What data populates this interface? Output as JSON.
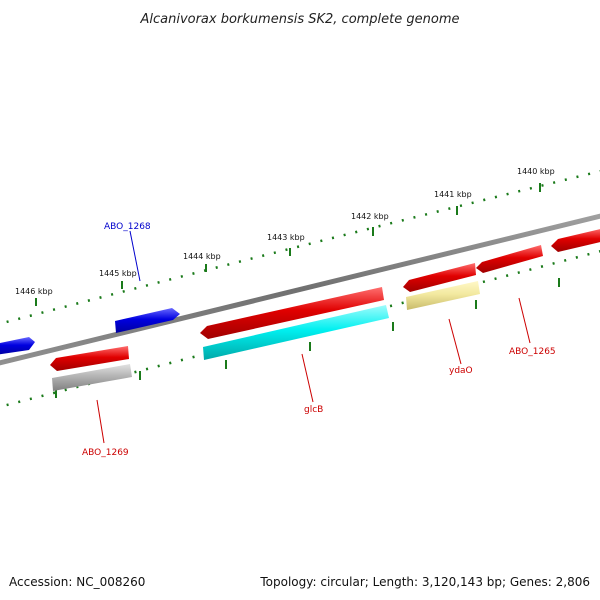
{
  "title": "Alcanivorax borkumensis SK2, complete genome",
  "footer": {
    "accession": "Accession: NC_008260",
    "topology": "Topology: circular; Length: 3,120,143 bp; Genes: 2,806"
  },
  "ruler_labels": [
    "1446 kbp",
    "1445 kbp",
    "1444 kbp",
    "1443 kbp",
    "1442 kbp",
    "1441 kbp",
    "1440 kbp"
  ],
  "gene_labels": [
    {
      "id": "ABO_1268",
      "text": "ABO_1268",
      "color": "#0000cc"
    },
    {
      "id": "ABO_1269",
      "text": "ABO_1269",
      "color": "#cc0000"
    },
    {
      "id": "glcB",
      "text": "glcB",
      "color": "#cc0000"
    },
    {
      "id": "ydaO",
      "text": "ydaO",
      "color": "#cc0000"
    },
    {
      "id": "ABO_1265",
      "text": "ABO_1265",
      "color": "#cc0000"
    }
  ],
  "colors": {
    "forward_gene": "#1010e8",
    "reverse_gene": "#e80808",
    "glcB_feature": "#10f0f0",
    "ydaO_feature": "#f0e8a0",
    "ABO_1269_feature": "#b0b0b0",
    "backbone": "#808080",
    "tick": "#1a7a1a"
  }
}
